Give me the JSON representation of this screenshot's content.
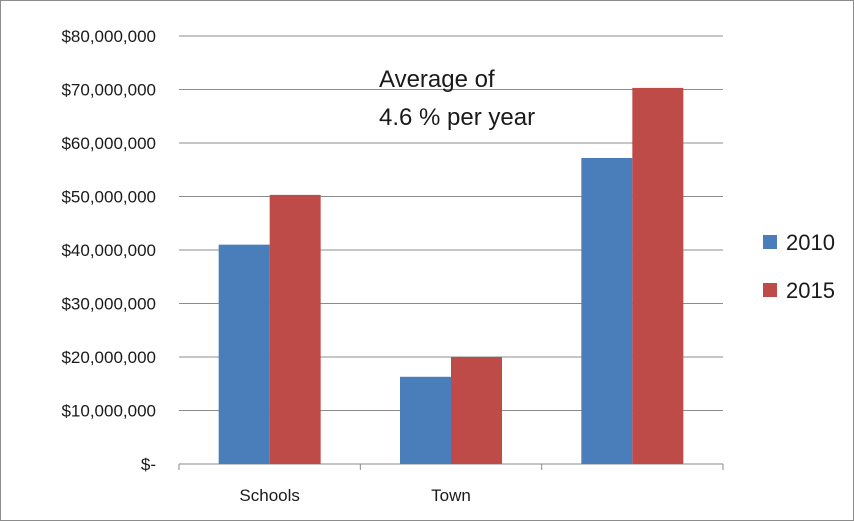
{
  "chart_data": {
    "type": "bar",
    "categories": [
      "Schools",
      "Town",
      ""
    ],
    "series": [
      {
        "name": "2010",
        "values": [
          41000000,
          16300000,
          57200000
        ],
        "color": "#4a7ebb"
      },
      {
        "name": "2015",
        "values": [
          50300000,
          20000000,
          70300000
        ],
        "color": "#be4b48"
      }
    ],
    "yticks": [
      "$-",
      "$10,000,000",
      "$20,000,000",
      "$30,000,000",
      "$40,000,000",
      "$50,000,000",
      "$60,000,000",
      "$70,000,000",
      "$80,000,000"
    ],
    "ylim": [
      0,
      80000000
    ],
    "grid": true,
    "legend": "right",
    "annotation": [
      "Average of",
      "4.6 % per year"
    ]
  }
}
